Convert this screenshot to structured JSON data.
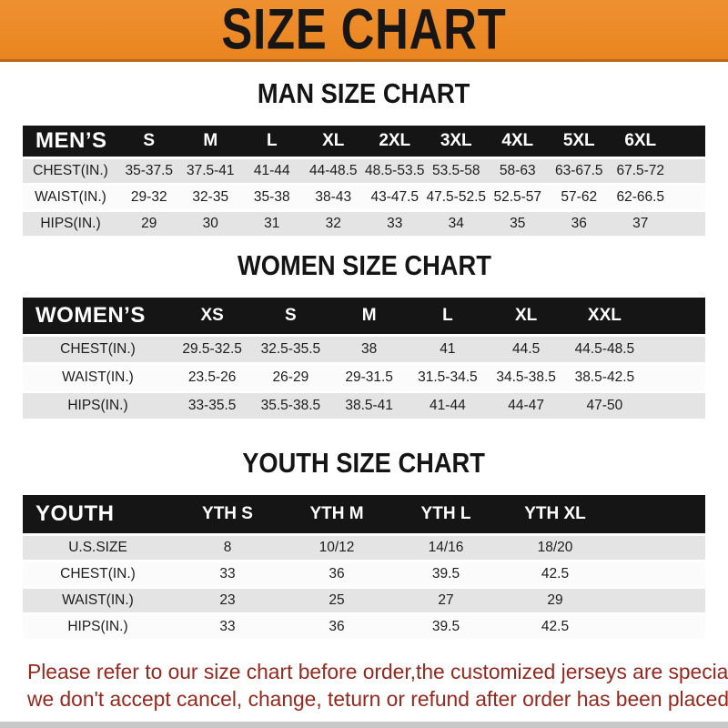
{
  "banner": {
    "title": "SIZE CHART"
  },
  "sections": [
    {
      "heading": "MAN SIZE CHART",
      "header_label": "MEN’S",
      "columns": [
        "S",
        "M",
        "L",
        "XL",
        "2XL",
        "3XL",
        "4XL",
        "5XL",
        "6XL"
      ],
      "rows": [
        {
          "label": "CHEST(IN.)",
          "values": [
            "35-37.5",
            "37.5-41",
            "41-44",
            "44-48.5",
            "48.5-53.5",
            "53.5-58",
            "58-63",
            "63-67.5",
            "67.5-72"
          ]
        },
        {
          "label": "WAIST(IN.)",
          "values": [
            "29-32",
            "32-35",
            "35-38",
            "38-43",
            "43-47.5",
            "47.5-52.5",
            "52.5-57",
            "57-62",
            "62-66.5"
          ]
        },
        {
          "label": "HIPS(IN.)",
          "values": [
            "29",
            "30",
            "31",
            "32",
            "33",
            "34",
            "35",
            "36",
            "37"
          ]
        }
      ]
    },
    {
      "heading": "WOMEN SIZE CHART",
      "header_label": "WOMEN’S",
      "columns": [
        "XS",
        "S",
        "M",
        "L",
        "XL",
        "XXL"
      ],
      "rows": [
        {
          "label": "CHEST(IN.)",
          "values": [
            "29.5-32.5",
            "32.5-35.5",
            "38",
            "41",
            "44.5",
            "44.5-48.5"
          ]
        },
        {
          "label": "WAIST(IN.)",
          "values": [
            "23.5-26",
            "26-29",
            "29-31.5",
            "31.5-34.5",
            "34.5-38.5",
            "38.5-42.5"
          ]
        },
        {
          "label": "HIPS(IN.)",
          "values": [
            "33-35.5",
            "35.5-38.5",
            "38.5-41",
            "41-44",
            "44-47",
            "47-50"
          ]
        }
      ]
    },
    {
      "heading": "YOUTH SIZE CHART",
      "header_label": "YOUTH",
      "columns": [
        "YTH S",
        "YTH M",
        "YTH L",
        "YTH XL"
      ],
      "rows": [
        {
          "label": "U.S.SIZE",
          "values": [
            "8",
            "10/12",
            "14/16",
            "18/20"
          ]
        },
        {
          "label": "CHEST(IN.)",
          "values": [
            "33",
            "36",
            "39.5",
            "42.5"
          ]
        },
        {
          "label": "WAIST(IN.)",
          "values": [
            "23",
            "25",
            "27",
            "29"
          ]
        },
        {
          "label": "HIPS(IN.)",
          "values": [
            "33",
            "36",
            "39.5",
            "42.5"
          ]
        }
      ]
    }
  ],
  "footer": {
    "line1": "Please refer to our size chart before order,the customized jerseys are special products,",
    "line2": "we don't accept cancel, change, teturn or refund after order has been placed!"
  },
  "colors": {
    "banner_bg": "#EA8824",
    "banner_border": "#B8681C",
    "table_header_bg": "#151515",
    "row_gray": "#E4E4E4",
    "row_white": "#FBFBFB",
    "disclaimer_red": "#96281E"
  }
}
